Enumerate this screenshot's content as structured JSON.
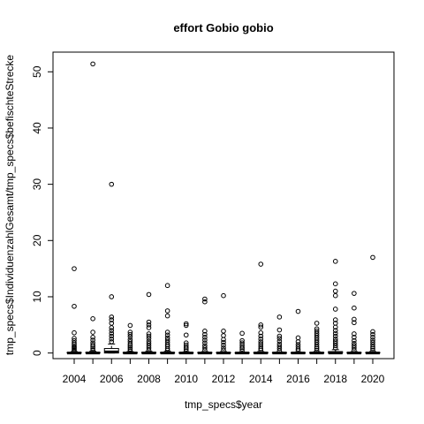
{
  "chart_data": {
    "type": "boxplot",
    "title": "effort Gobio gobio",
    "xlabel": "tmp_specs$year",
    "ylabel": "tmp_specs$IndividuenzahlGesamt/tmp_specs$befischteStrecke",
    "categories": [
      2004,
      2005,
      2006,
      2007,
      2008,
      2009,
      2010,
      2011,
      2012,
      2013,
      2014,
      2015,
      2016,
      2017,
      2018,
      2019,
      2020
    ],
    "x_tick_labels": [
      "2004",
      "2006",
      "2008",
      "2010",
      "2012",
      "2014",
      "2016",
      "2018",
      "2020"
    ],
    "y_ticks": [
      0,
      10,
      20,
      30,
      40,
      50
    ],
    "ylim": [
      -1,
      53.5
    ],
    "grid": false,
    "legend": "none",
    "boxes": [
      {
        "year": 2004,
        "q1": 0.0,
        "median": 0.0,
        "q3": 0.1,
        "whisker_low": 0.0,
        "whisker_high": 0.25,
        "outliers": [
          0.4,
          0.6,
          0.8,
          1.0,
          1.2,
          1.5,
          1.8,
          2.2,
          2.6,
          3.6,
          8.3,
          15.0
        ]
      },
      {
        "year": 2005,
        "q1": 0.0,
        "median": 0.0,
        "q3": 0.12,
        "whisker_low": 0.0,
        "whisker_high": 0.3,
        "outliers": [
          0.5,
          0.8,
          1.1,
          1.4,
          1.8,
          2.3,
          2.8,
          3.7,
          6.1,
          51.4
        ]
      },
      {
        "year": 2006,
        "q1": 0.0,
        "median": 0.2,
        "q3": 0.8,
        "whisker_low": 0.0,
        "whisker_high": 1.6,
        "outliers": [
          2.0,
          2.5,
          3.0,
          3.5,
          4.0,
          4.5,
          5.3,
          5.9,
          6.4,
          10.0,
          30.0
        ]
      },
      {
        "year": 2007,
        "q1": 0.0,
        "median": 0.0,
        "q3": 0.1,
        "whisker_low": 0.0,
        "whisker_high": 0.25,
        "outliers": [
          0.4,
          0.7,
          1.0,
          1.3,
          1.6,
          2.0,
          2.4,
          2.9,
          3.3,
          3.7,
          4.9
        ]
      },
      {
        "year": 2008,
        "q1": 0.0,
        "median": 0.0,
        "q3": 0.12,
        "whisker_low": 0.0,
        "whisker_high": 0.3,
        "outliers": [
          0.5,
          0.9,
          1.3,
          1.7,
          2.1,
          2.6,
          3.0,
          3.4,
          4.5,
          5.0,
          5.5,
          10.4
        ]
      },
      {
        "year": 2009,
        "q1": 0.0,
        "median": 0.0,
        "q3": 0.1,
        "whisker_low": 0.0,
        "whisker_high": 0.3,
        "outliers": [
          0.5,
          0.8,
          1.2,
          1.5,
          1.9,
          2.3,
          2.7,
          3.2,
          3.7,
          6.6,
          7.5,
          12.0
        ]
      },
      {
        "year": 2010,
        "q1": 0.0,
        "median": 0.0,
        "q3": 0.08,
        "whisker_low": 0.0,
        "whisker_high": 0.2,
        "outliers": [
          0.4,
          0.7,
          1.0,
          1.4,
          1.8,
          3.2,
          4.9,
          5.2
        ]
      },
      {
        "year": 2011,
        "q1": 0.0,
        "median": 0.0,
        "q3": 0.1,
        "whisker_low": 0.0,
        "whisker_high": 0.25,
        "outliers": [
          0.5,
          0.9,
          1.3,
          1.8,
          2.3,
          2.8,
          3.3,
          3.9,
          9.1,
          9.6
        ]
      },
      {
        "year": 2012,
        "q1": 0.0,
        "median": 0.0,
        "q3": 0.1,
        "whisker_low": 0.0,
        "whisker_high": 0.25,
        "outliers": [
          0.5,
          0.9,
          1.4,
          1.9,
          2.4,
          3.1,
          3.9,
          10.2
        ]
      },
      {
        "year": 2013,
        "q1": 0.0,
        "median": 0.0,
        "q3": 0.06,
        "whisker_low": 0.0,
        "whisker_high": 0.15,
        "outliers": [
          0.4,
          0.7,
          1.0,
          1.4,
          1.8,
          2.2,
          3.5
        ]
      },
      {
        "year": 2014,
        "q1": 0.0,
        "median": 0.0,
        "q3": 0.1,
        "whisker_low": 0.0,
        "whisker_high": 0.25,
        "outliers": [
          0.5,
          0.8,
          1.2,
          1.6,
          2.0,
          2.5,
          3.0,
          3.6,
          4.6,
          5.0,
          15.8
        ]
      },
      {
        "year": 2015,
        "q1": 0.0,
        "median": 0.0,
        "q3": 0.08,
        "whisker_low": 0.0,
        "whisker_high": 0.2,
        "outliers": [
          0.4,
          0.8,
          1.2,
          1.6,
          2.1,
          2.6,
          3.0,
          4.1,
          6.4
        ]
      },
      {
        "year": 2016,
        "q1": 0.0,
        "median": 0.0,
        "q3": 0.06,
        "whisker_low": 0.0,
        "whisker_high": 0.15,
        "outliers": [
          0.4,
          0.7,
          1.1,
          1.5,
          2.0,
          2.7,
          7.4
        ]
      },
      {
        "year": 2017,
        "q1": 0.0,
        "median": 0.0,
        "q3": 0.1,
        "whisker_low": 0.0,
        "whisker_high": 0.25,
        "outliers": [
          0.5,
          0.8,
          1.1,
          1.5,
          1.9,
          2.3,
          2.7,
          3.1,
          3.5,
          3.9,
          4.3,
          5.3
        ]
      },
      {
        "year": 2018,
        "q1": 0.0,
        "median": 0.0,
        "q3": 0.25,
        "whisker_low": 0.0,
        "whisker_high": 0.6,
        "outliers": [
          0.9,
          1.3,
          1.7,
          2.1,
          2.5,
          3.0,
          3.5,
          4.0,
          4.6,
          5.3,
          5.9,
          7.8,
          10.2,
          11.0,
          12.3,
          16.3
        ]
      },
      {
        "year": 2019,
        "q1": 0.0,
        "median": 0.0,
        "q3": 0.1,
        "whisker_low": 0.0,
        "whisker_high": 0.25,
        "outliers": [
          0.5,
          0.9,
          1.3,
          1.7,
          2.2,
          2.8,
          3.4,
          5.4,
          6.0,
          8.0,
          10.6
        ]
      },
      {
        "year": 2020,
        "q1": 0.0,
        "median": 0.0,
        "q3": 0.1,
        "whisker_low": 0.0,
        "whisker_high": 0.25,
        "outliers": [
          0.5,
          0.8,
          1.1,
          1.5,
          1.9,
          2.3,
          2.8,
          3.3,
          3.8,
          17.0
        ]
      }
    ]
  }
}
